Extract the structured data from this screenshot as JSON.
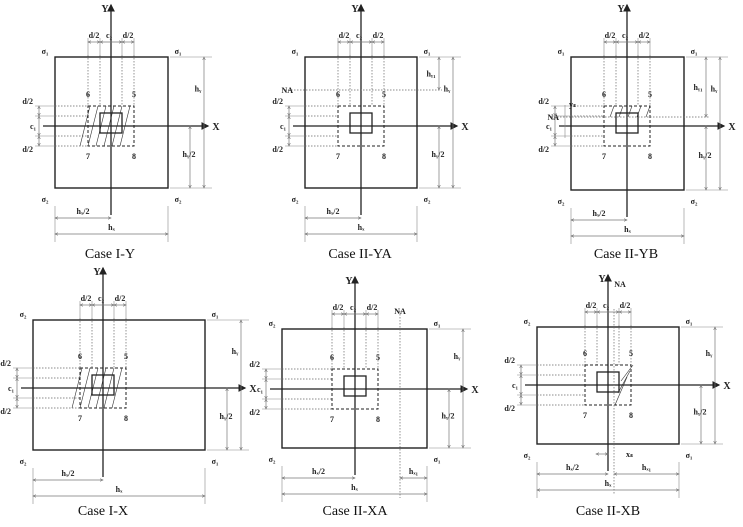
{
  "labels": {
    "axis_x": "X",
    "axis_y": "Y",
    "d_half": "d/2",
    "c1": "c₁",
    "c2": "c₂",
    "hx": "hₓ",
    "hx_half": "hₓ/2",
    "hy": "hᵧ",
    "hy_half": "hᵧ/2",
    "hy1": "hᵧ₁",
    "hx1": "hₓ₁",
    "na": "NA",
    "ys": "yₛ",
    "xs": "xₛ",
    "sigma1": "σ₁",
    "sigma2": "σ₂",
    "q5": "5",
    "q6": "6",
    "q7": "7",
    "q8": "8"
  },
  "panels": [
    {
      "caption": "Case I-Y",
      "corners": [
        "sigma1",
        "sigma1",
        "sigma2",
        "sigma2"
      ],
      "variant": "I-Y"
    },
    {
      "caption": "Case II-YA",
      "corners": [
        "sigma1",
        "sigma1",
        "sigma2",
        "sigma2"
      ],
      "variant": "II-YA"
    },
    {
      "caption": "Case II-YB",
      "corners": [
        "sigma1",
        "sigma1",
        "sigma2",
        "sigma2"
      ],
      "variant": "II-YB"
    },
    {
      "caption": "Case I-X",
      "corners": [
        "sigma2",
        "sigma1",
        "sigma2",
        "sigma1"
      ],
      "variant": "I-X"
    },
    {
      "caption": "Case II-XA",
      "corners": [
        "sigma2",
        "sigma1",
        "sigma2",
        "sigma1"
      ],
      "variant": "II-XA"
    },
    {
      "caption": "Case II-XB",
      "corners": [
        "sigma2",
        "sigma1",
        "sigma2",
        "sigma1"
      ],
      "variant": "II-XB"
    }
  ],
  "colors": {
    "line": "#222222",
    "dim": "#777777"
  }
}
